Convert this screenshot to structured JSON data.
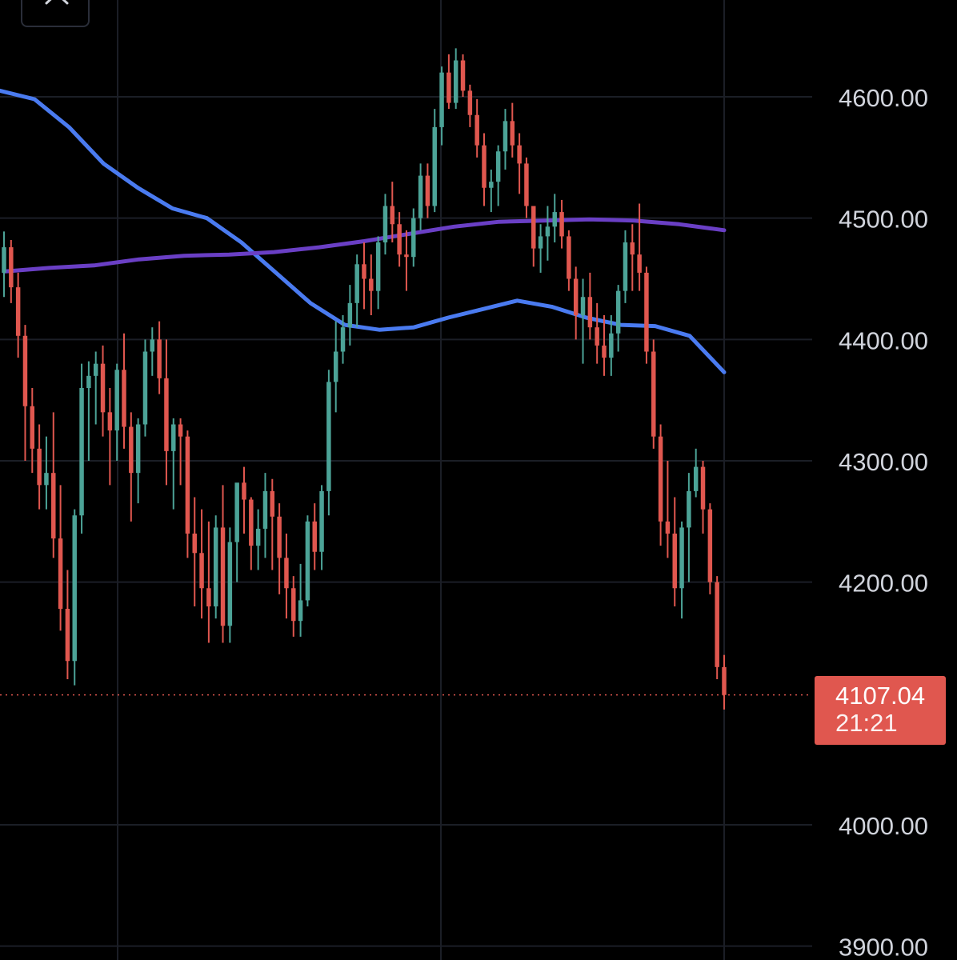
{
  "chart_data": {
    "type": "candlestick",
    "ylim": [
      3890,
      4680
    ],
    "y_ticks": [
      "4600.00",
      "4500.00",
      "4400.00",
      "4300.00",
      "4200.00",
      "4000.00",
      "3900.00"
    ],
    "y_tick_values": [
      4600,
      4500,
      4400,
      4300,
      4200,
      4000,
      3900
    ],
    "grid": true,
    "up_color": "#4ca397",
    "down_color": "#e0574f",
    "last_price": "4107.04",
    "last_price_value": 4107.04,
    "countdown": "21:21",
    "candles": [
      [
        4455,
        4489,
        4435,
        4476
      ],
      [
        4476,
        4482,
        4430,
        4443
      ],
      [
        4443,
        4455,
        4385,
        4403
      ],
      [
        4403,
        4412,
        4300,
        4345
      ],
      [
        4345,
        4360,
        4290,
        4310
      ],
      [
        4310,
        4330,
        4260,
        4280
      ],
      [
        4280,
        4320,
        4260,
        4290
      ],
      [
        4290,
        4340,
        4220,
        4236
      ],
      [
        4236,
        4280,
        4160,
        4178
      ],
      [
        4178,
        4210,
        4120,
        4135
      ],
      [
        4135,
        4260,
        4115,
        4255
      ],
      [
        4255,
        4380,
        4240,
        4360
      ],
      [
        4360,
        4382,
        4300,
        4370
      ],
      [
        4370,
        4390,
        4330,
        4380
      ],
      [
        4380,
        4395,
        4320,
        4340
      ],
      [
        4340,
        4360,
        4280,
        4325
      ],
      [
        4325,
        4380,
        4300,
        4375
      ],
      [
        4375,
        4405,
        4310,
        4328
      ],
      [
        4328,
        4340,
        4250,
        4290
      ],
      [
        4290,
        4335,
        4265,
        4330
      ],
      [
        4330,
        4400,
        4320,
        4390
      ],
      [
        4390,
        4410,
        4370,
        4400
      ],
      [
        4400,
        4415,
        4355,
        4368
      ],
      [
        4368,
        4400,
        4280,
        4308
      ],
      [
        4308,
        4335,
        4260,
        4330
      ],
      [
        4330,
        4335,
        4280,
        4320
      ],
      [
        4320,
        4325,
        4220,
        4240
      ],
      [
        4240,
        4270,
        4180,
        4224
      ],
      [
        4224,
        4260,
        4170,
        4195
      ],
      [
        4195,
        4250,
        4150,
        4180
      ],
      [
        4180,
        4255,
        4170,
        4245
      ],
      [
        4245,
        4280,
        4150,
        4164
      ],
      [
        4164,
        4245,
        4150,
        4233
      ],
      [
        4233,
        4280,
        4200,
        4282
      ],
      [
        4282,
        4295,
        4240,
        4268
      ],
      [
        4268,
        4270,
        4210,
        4230
      ],
      [
        4230,
        4260,
        4210,
        4244
      ],
      [
        4244,
        4290,
        4220,
        4275
      ],
      [
        4275,
        4285,
        4210,
        4254
      ],
      [
        4254,
        4265,
        4190,
        4220
      ],
      [
        4220,
        4240,
        4170,
        4195
      ],
      [
        4195,
        4205,
        4155,
        4168
      ],
      [
        4168,
        4215,
        4155,
        4185
      ],
      [
        4185,
        4255,
        4180,
        4250
      ],
      [
        4250,
        4265,
        4210,
        4225
      ],
      [
        4225,
        4280,
        4210,
        4275
      ],
      [
        4275,
        4375,
        4255,
        4365
      ],
      [
        4365,
        4415,
        4340,
        4390
      ],
      [
        4390,
        4420,
        4380,
        4410
      ],
      [
        4410,
        4445,
        4395,
        4430
      ],
      [
        4430,
        4470,
        4410,
        4462
      ],
      [
        4462,
        4480,
        4425,
        4450
      ],
      [
        4450,
        4470,
        4420,
        4440
      ],
      [
        4440,
        4485,
        4425,
        4480
      ],
      [
        4480,
        4520,
        4470,
        4510
      ],
      [
        4510,
        4530,
        4480,
        4495
      ],
      [
        4495,
        4505,
        4460,
        4470
      ],
      [
        4470,
        4490,
        4440,
        4468
      ],
      [
        4468,
        4508,
        4460,
        4500
      ],
      [
        4500,
        4545,
        4490,
        4535
      ],
      [
        4535,
        4545,
        4500,
        4510
      ],
      [
        4510,
        4590,
        4505,
        4575
      ],
      [
        4575,
        4625,
        4560,
        4620
      ],
      [
        4620,
        4635,
        4590,
        4595
      ],
      [
        4595,
        4640,
        4590,
        4630
      ],
      [
        4630,
        4635,
        4600,
        4605
      ],
      [
        4605,
        4610,
        4575,
        4585
      ],
      [
        4585,
        4598,
        4550,
        4560
      ],
      [
        4560,
        4570,
        4510,
        4525
      ],
      [
        4525,
        4540,
        4505,
        4530
      ],
      [
        4530,
        4560,
        4510,
        4555
      ],
      [
        4555,
        4590,
        4540,
        4580
      ],
      [
        4580,
        4595,
        4550,
        4560
      ],
      [
        4560,
        4570,
        4520,
        4545
      ],
      [
        4545,
        4550,
        4500,
        4510
      ],
      [
        4510,
        4505,
        4460,
        4475
      ],
      [
        4475,
        4495,
        4455,
        4485
      ],
      [
        4485,
        4510,
        4465,
        4493
      ],
      [
        4493,
        4520,
        4480,
        4505
      ],
      [
        4505,
        4515,
        4475,
        4485
      ],
      [
        4485,
        4490,
        4440,
        4450
      ],
      [
        4450,
        4460,
        4400,
        4420
      ],
      [
        4420,
        4450,
        4380,
        4435
      ],
      [
        4435,
        4455,
        4400,
        4410
      ],
      [
        4410,
        4430,
        4380,
        4395
      ],
      [
        4395,
        4420,
        4370,
        4385
      ],
      [
        4385,
        4420,
        4370,
        4405
      ],
      [
        4405,
        4445,
        4390,
        4440
      ],
      [
        4440,
        4490,
        4430,
        4480
      ],
      [
        4480,
        4495,
        4440,
        4470
      ],
      [
        4470,
        4512,
        4440,
        4455
      ],
      [
        4455,
        4460,
        4380,
        4390
      ],
      [
        4390,
        4400,
        4310,
        4320
      ],
      [
        4320,
        4330,
        4230,
        4250
      ],
      [
        4250,
        4300,
        4220,
        4240
      ],
      [
        4240,
        4270,
        4180,
        4195
      ],
      [
        4195,
        4250,
        4170,
        4245
      ],
      [
        4245,
        4290,
        4200,
        4275
      ],
      [
        4275,
        4310,
        4270,
        4295
      ],
      [
        4295,
        4300,
        4240,
        4260
      ],
      [
        4260,
        4265,
        4190,
        4200
      ],
      [
        4200,
        4205,
        4120,
        4130
      ],
      [
        4130,
        4140,
        4095,
        4107
      ]
    ],
    "series": [
      {
        "color": "#4a7bf0",
        "width": 5,
        "values": [
          4605,
          4598,
          4575,
          4545,
          4525,
          4508,
          4500,
          4480,
          4455,
          4430,
          4412,
          4408,
          4410,
          4418,
          4425,
          4432,
          4427,
          4418,
          4412,
          4411,
          4403,
          4373
        ]
      },
      {
        "color": "#6a3fc5",
        "width": 5,
        "values": [
          4456,
          4459,
          4461,
          4466,
          4469,
          4470,
          4472,
          4476,
          4481,
          4487,
          4493,
          4497,
          4498,
          4499,
          4498,
          4495,
          4490
        ]
      }
    ]
  },
  "controls": {
    "close_icon": "close-icon"
  }
}
